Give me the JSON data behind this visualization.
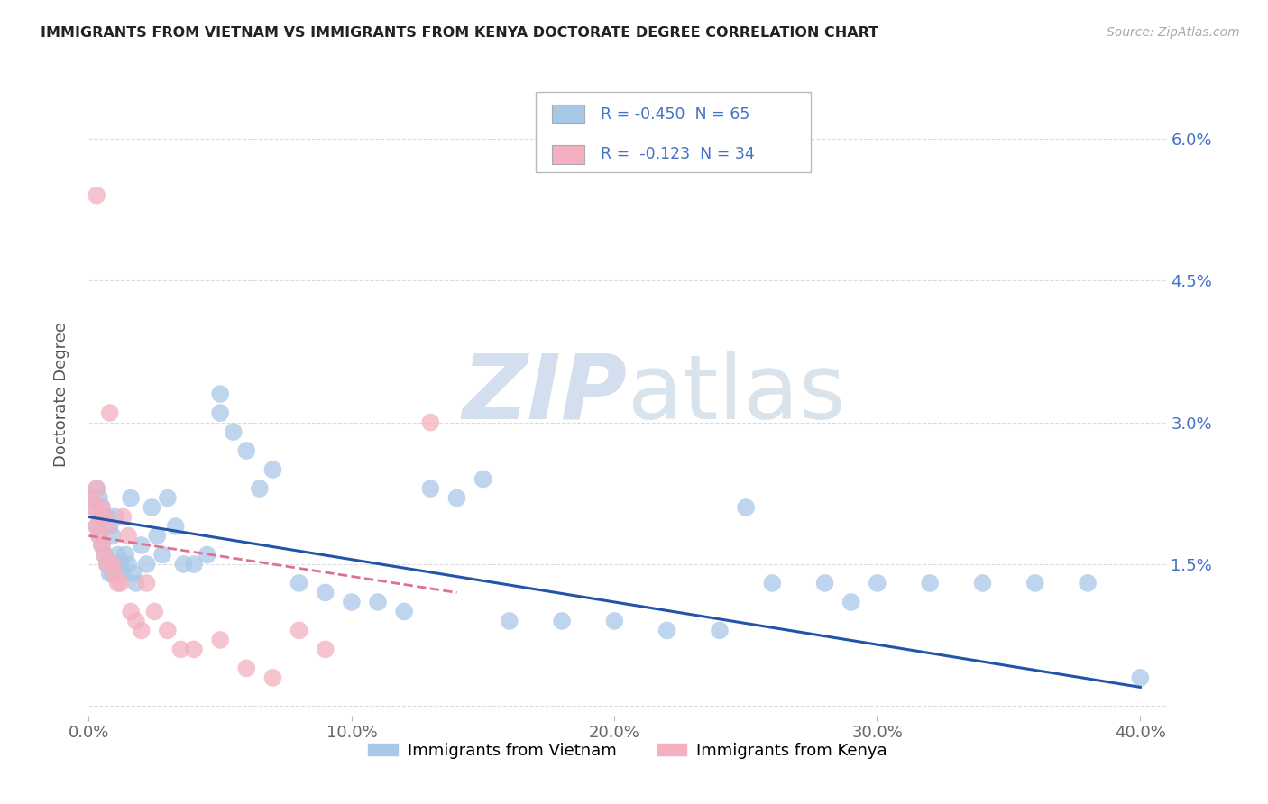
{
  "title": "IMMIGRANTS FROM VIETNAM VS IMMIGRANTS FROM KENYA DOCTORATE DEGREE CORRELATION CHART",
  "source": "Source: ZipAtlas.com",
  "ylabel": "Doctorate Degree",
  "xlim": [
    0.0,
    0.41
  ],
  "ylim": [
    -0.001,
    0.067
  ],
  "ytick_vals": [
    0.0,
    0.015,
    0.03,
    0.045,
    0.06
  ],
  "ytick_labels": [
    "",
    "1.5%",
    "3.0%",
    "4.5%",
    "6.0%"
  ],
  "xtick_vals": [
    0.0,
    0.1,
    0.2,
    0.3,
    0.4
  ],
  "xtick_labels": [
    "0.0%",
    "10.0%",
    "20.0%",
    "30.0%",
    "40.0%"
  ],
  "vietnam_color": "#a8c8e8",
  "kenya_color": "#f4b0c0",
  "vietnam_line_color": "#2255aa",
  "kenya_line_color": "#e07090",
  "legend_vietnam_R": "-0.450",
  "legend_vietnam_N": "65",
  "legend_kenya_R": "-0.123",
  "legend_kenya_N": "34",
  "watermark_color": "#dde8f2",
  "grid_color": "#cccccc",
  "title_color": "#222222",
  "source_color": "#aaaaaa",
  "axis_label_color": "#555555",
  "tick_color": "#4472c4",
  "bottom_legend": [
    "Immigrants from Vietnam",
    "Immigrants from Kenya"
  ],
  "vietnam_x": [
    0.001,
    0.002,
    0.003,
    0.003,
    0.004,
    0.004,
    0.005,
    0.005,
    0.006,
    0.006,
    0.007,
    0.007,
    0.008,
    0.008,
    0.009,
    0.009,
    0.01,
    0.01,
    0.011,
    0.012,
    0.013,
    0.014,
    0.015,
    0.016,
    0.017,
    0.018,
    0.02,
    0.022,
    0.024,
    0.026,
    0.028,
    0.03,
    0.033,
    0.036,
    0.04,
    0.045,
    0.05,
    0.055,
    0.06,
    0.065,
    0.07,
    0.08,
    0.09,
    0.1,
    0.11,
    0.13,
    0.14,
    0.16,
    0.18,
    0.2,
    0.22,
    0.24,
    0.26,
    0.28,
    0.3,
    0.32,
    0.34,
    0.36,
    0.38,
    0.4,
    0.05,
    0.12,
    0.15,
    0.25,
    0.29
  ],
  "vietnam_y": [
    0.022,
    0.021,
    0.023,
    0.019,
    0.022,
    0.018,
    0.021,
    0.017,
    0.02,
    0.016,
    0.02,
    0.015,
    0.019,
    0.014,
    0.018,
    0.014,
    0.02,
    0.015,
    0.016,
    0.015,
    0.014,
    0.016,
    0.015,
    0.022,
    0.014,
    0.013,
    0.017,
    0.015,
    0.021,
    0.018,
    0.016,
    0.022,
    0.019,
    0.015,
    0.015,
    0.016,
    0.031,
    0.029,
    0.027,
    0.023,
    0.025,
    0.013,
    0.012,
    0.011,
    0.011,
    0.023,
    0.022,
    0.009,
    0.009,
    0.009,
    0.008,
    0.008,
    0.013,
    0.013,
    0.013,
    0.013,
    0.013,
    0.013,
    0.013,
    0.003,
    0.033,
    0.01,
    0.024,
    0.021,
    0.011
  ],
  "kenya_x": [
    0.001,
    0.002,
    0.003,
    0.003,
    0.004,
    0.004,
    0.005,
    0.005,
    0.006,
    0.006,
    0.007,
    0.007,
    0.008,
    0.009,
    0.01,
    0.011,
    0.012,
    0.013,
    0.015,
    0.016,
    0.018,
    0.02,
    0.022,
    0.025,
    0.03,
    0.035,
    0.04,
    0.05,
    0.06,
    0.07,
    0.08,
    0.09,
    0.13,
    0.003
  ],
  "kenya_y": [
    0.022,
    0.021,
    0.054,
    0.019,
    0.02,
    0.018,
    0.021,
    0.017,
    0.02,
    0.016,
    0.019,
    0.015,
    0.031,
    0.015,
    0.014,
    0.013,
    0.013,
    0.02,
    0.018,
    0.01,
    0.009,
    0.008,
    0.013,
    0.01,
    0.008,
    0.006,
    0.006,
    0.007,
    0.004,
    0.003,
    0.008,
    0.006,
    0.03,
    0.023
  ],
  "viet_line_x0": 0.0,
  "viet_line_y0": 0.02,
  "viet_line_x1": 0.4,
  "viet_line_y1": 0.002,
  "kenya_line_x0": 0.0,
  "kenya_line_y0": 0.018,
  "kenya_line_x1": 0.14,
  "kenya_line_y1": 0.012
}
